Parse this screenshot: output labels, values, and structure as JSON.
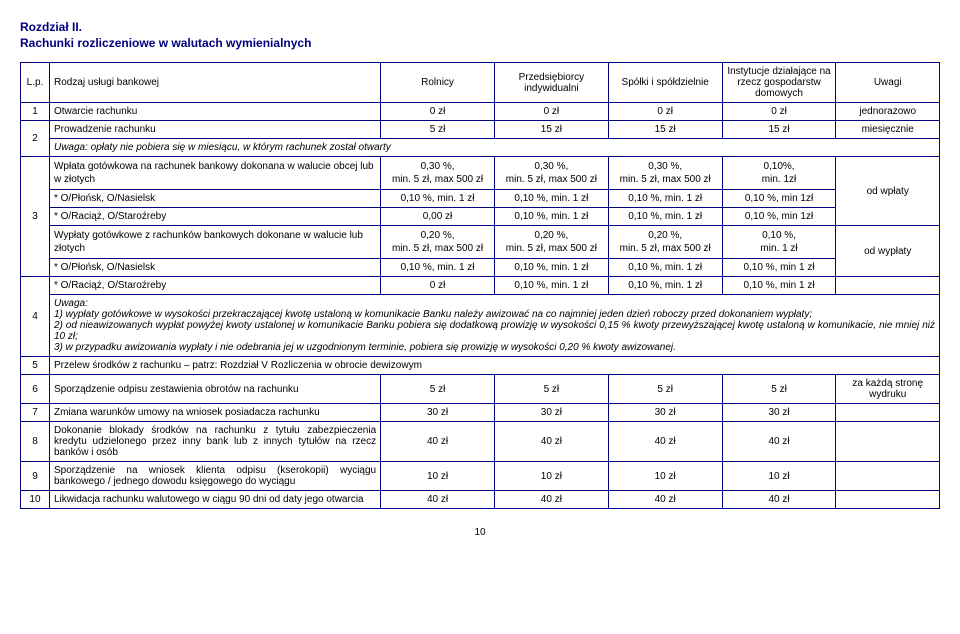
{
  "header": {
    "chapter": "Rozdział II.",
    "subtitle": "Rachunki rozliczeniowe w walutach wymienialnych"
  },
  "columns": {
    "lp": "L.p.",
    "service": "Rodzaj usługi bankowej",
    "c1": "Rolnicy",
    "c2": "Przedsiębiorcy indywidualni",
    "c3": "Spółki i spółdzielnie",
    "c4": "Instytucje działające na rzecz gospodarstw domowych",
    "uwagi": "Uwagi"
  },
  "rows": {
    "r1": {
      "lp": "1",
      "label": "Otwarcie rachunku",
      "v1": "0 zł",
      "v2": "0 zł",
      "v3": "0 zł",
      "v4": "0 zł",
      "u": "jednorazowo"
    },
    "r2a": {
      "lp": "2",
      "label": "Prowadzenie rachunku",
      "v1": "5 zł",
      "v2": "15 zł",
      "v3": "15 zł",
      "v4": "15 zł",
      "u": "miesięcznie"
    },
    "r2note": "Uwaga: opłaty nie pobiera się w miesiącu, w którym rachunek został otwarty",
    "r3a": {
      "label": "Wpłata gotówkowa na rachunek bankowy dokonana w walucie obcej lub w złotych",
      "v1": "0,30 %,\nmin. 5 zł, max 500 zł",
      "v2": "0,30 %,\nmin. 5 zł, max 500 zł",
      "v3": "0,30 %,\nmin. 5 zł, max 500 zł",
      "v4": "0,10%,\nmin. 1zł"
    },
    "r3b": {
      "lp": "3",
      "label": "* O/Płońsk, O/Nasielsk",
      "v1": "0,10 %, min. 1 zł",
      "v2": "0,10 %, min. 1 zł",
      "v3": "0,10 %, min. 1 zł",
      "v4": "0,10 %, min 1zł",
      "u": "od wpłaty"
    },
    "r3c": {
      "label": "* O/Raciąż, O/Staroźreby",
      "v1": "0,00 zł",
      "v2": "0,10 %, min. 1 zł",
      "v3": "0,10 %, min. 1 zł",
      "v4": "0,10 %, min 1zł"
    },
    "r3d": {
      "label": "Wypłaty gotówkowe z rachunków bankowych dokonane w walucie lub złotych",
      "v1": "0,20 %,\nmin. 5 zł, max 500 zł",
      "v2": "0,20 %,\nmin. 5 zł, max 500 zł",
      "v3": "0,20 %,\nmin. 5 zł, max 500 zł",
      "v4": "0,10 %,\nmin. 1 zł"
    },
    "r3e": {
      "label": "* O/Płońsk, O/Nasielsk",
      "v1": "0,10 %, min. 1 zł",
      "v2": "0,10 %, min. 1 zł",
      "v3": "0,10 %, min. 1 zł",
      "v4": "0,10 %, min 1 zł",
      "u": "od wypłaty"
    },
    "r4a": {
      "lp": "4",
      "label": "* O/Raciąż, O/Staroźreby",
      "v1": "0 zł",
      "v2": "0,10 %, min. 1 zł",
      "v3": "0,10 %, min. 1 zł",
      "v4": "0,10 %, min 1 zł"
    },
    "r4note": "Uwaga:\n1) wypłaty gotówkowe w wysokości przekraczającej kwotę ustaloną w komunikacie Banku należy awizować na co najmniej jeden dzień roboczy przed dokonaniem wypłaty;\n2) od nieawizowanych wypłat powyżej kwoty ustalonej w komunikacie Banku pobiera się dodatkową prowizję w wysokości 0,15 % kwoty przewyższającej kwotę ustaloną w komunikacie, nie mniej niż 10 zł;\n3) w przypadku awizowania wypłaty i nie odebrania jej w uzgodnionym terminie, pobiera się prowizję w wysokości 0,20 % kwoty awizowanej.",
    "r5": {
      "lp": "5",
      "label": "Przelew środków z rachunku – patrz: Rozdział V Rozliczenia w obrocie dewizowym"
    },
    "r6": {
      "lp": "6",
      "label": "Sporządzenie odpisu zestawienia obrotów na rachunku",
      "v1": "5 zł",
      "v2": "5 zł",
      "v3": "5 zł",
      "v4": "5 zł",
      "u": "za każdą stronę wydruku"
    },
    "r7": {
      "lp": "7",
      "label": "Zmiana warunków umowy na wniosek posiadacza rachunku",
      "v1": "30 zł",
      "v2": "30 zł",
      "v3": "30 zł",
      "v4": "30 zł"
    },
    "r8": {
      "lp": "8",
      "label": "Dokonanie blokady środków na rachunku z tytułu zabezpieczenia kredytu udzielonego przez inny bank lub z innych tytułów na rzecz banków i osób",
      "v1": "40 zł",
      "v2": "40 zł",
      "v3": "40 zł",
      "v4": "40 zł"
    },
    "r9": {
      "lp": "9",
      "label": "Sporządzenie na wniosek klienta odpisu (kserokopii) wyciągu bankowego / jednego dowodu księgowego do wyciągu",
      "v1": "10 zł",
      "v2": "10 zł",
      "v3": "10 zł",
      "v4": "10 zł"
    },
    "r10": {
      "lp": "10",
      "label": "Likwidacja rachunku walutowego w ciągu 90 dni od daty jego otwarcia",
      "v1": "40 zł",
      "v2": "40 zł",
      "v3": "40 zł",
      "v4": "40 zł"
    }
  },
  "pageNumber": "10"
}
